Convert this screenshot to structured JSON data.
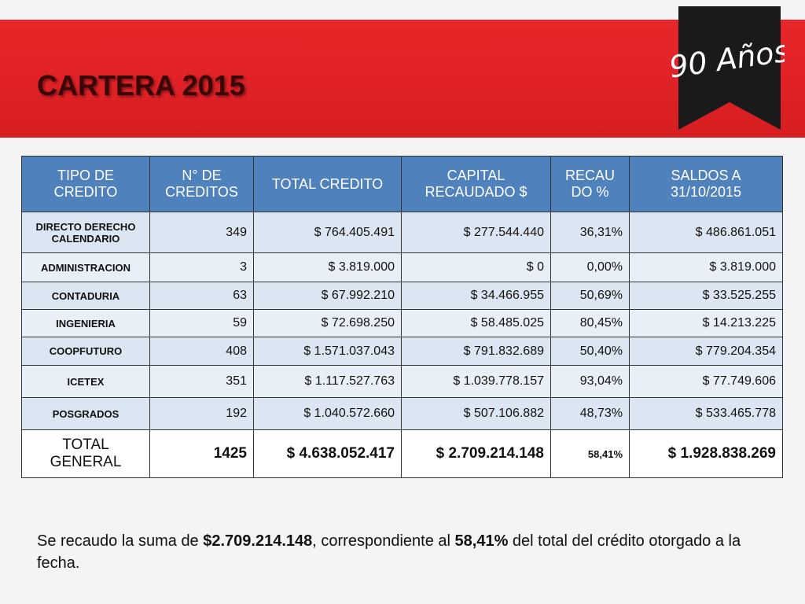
{
  "slide": {
    "title": "CARTERA 2015",
    "badge": "90 Años",
    "table": {
      "header": [
        "TIPO DE CREDITO",
        "N° DE CREDITOS",
        "TOTAL CREDITO",
        "CAPITAL RECAUDADO $",
        "RECAU DO %",
        "SALDOS A 31/10/2015"
      ],
      "rows": [
        [
          "DIRECTO DERECHO CALENDARIO",
          "349",
          "$ 764.405.491",
          "$ 277.544.440",
          "36,31%",
          "$ 486.861.051"
        ],
        [
          "ADMINISTRACION",
          "3",
          "$ 3.819.000",
          "$ 0",
          "0,00%",
          "$ 3.819.000"
        ],
        [
          "CONTADURIA",
          "63",
          "$ 67.992.210",
          "$ 34.466.955",
          "50,69%",
          "$ 33.525.255"
        ],
        [
          "INGENIERIA",
          "59",
          "$ 72.698.250",
          "$ 58.485.025",
          "80,45%",
          "$ 14.213.225"
        ],
        [
          "COOPFUTURO",
          "408",
          "$ 1.571.037.043",
          "$ 791.832.689",
          "50,40%",
          "$ 779.204.354"
        ],
        [
          "ICETEX",
          "351",
          "$ 1.117.527.763",
          "$ 1.039.778.157",
          "93,04%",
          "$ 77.749.606"
        ],
        [
          "POSGRADOS",
          "192",
          "$ 1.040.572.660",
          "$ 507.106.882",
          "48,73%",
          "$ 533.465.778"
        ]
      ],
      "total": [
        "TOTAL GENERAL",
        "1425",
        "$ 4.638.052.417",
        "$ 2.709.214.148",
        "58,41%",
        "$ 1.928.838.269"
      ]
    },
    "note": [
      {
        "text": "Se recaudo la suma de ",
        "bold": false
      },
      {
        "text": "$2.709.214.148",
        "bold": true
      },
      {
        "text": ", correspondiente al ",
        "bold": false
      },
      {
        "text": "58,41%",
        "bold": true
      },
      {
        "text": " del total del crédito otorgado a la fecha.",
        "bold": false
      }
    ]
  }
}
